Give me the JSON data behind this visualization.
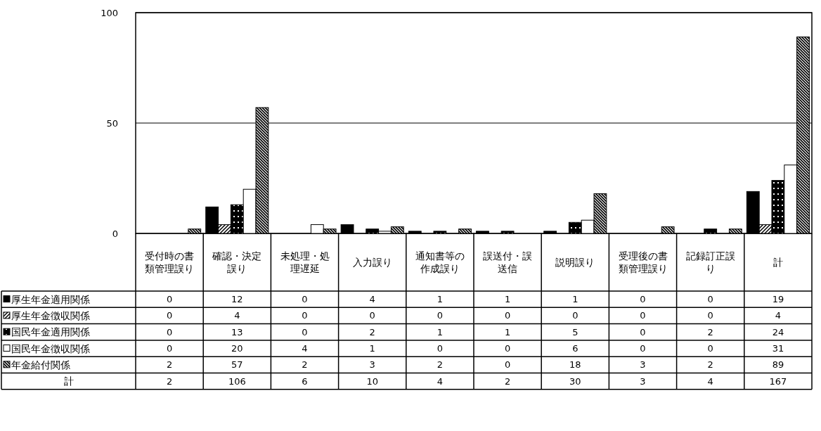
{
  "chart_data": {
    "type": "bar",
    "categories": [
      "受付時の書類管理誤り",
      "確認・決定誤り",
      "未処理・処理遅延",
      "入力誤り",
      "通知書等の作成誤り",
      "誤送付・誤送信",
      "説明誤り",
      "受理後の書類管理誤り",
      "記録訂正誤り",
      "計"
    ],
    "series": [
      {
        "name": "厚生年金適用関係",
        "color": "#000000",
        "values": [
          0,
          12,
          0,
          4,
          1,
          1,
          1,
          0,
          0,
          19
        ]
      },
      {
        "name": "厚生年金徴収関係",
        "color": "#000000",
        "values": [
          0,
          4,
          0,
          0,
          0,
          0,
          0,
          0,
          0,
          4
        ]
      },
      {
        "name": "国民年金適用関係",
        "color": "#000000",
        "values": [
          0,
          13,
          0,
          2,
          1,
          1,
          5,
          0,
          2,
          24
        ]
      },
      {
        "name": "国民年金徴収関係",
        "color": "#ffffff",
        "values": [
          0,
          20,
          4,
          1,
          0,
          0,
          6,
          0,
          0,
          31
        ]
      },
      {
        "name": "年金給付関係",
        "color": "#000000",
        "values": [
          2,
          57,
          2,
          3,
          2,
          0,
          18,
          3,
          2,
          89
        ]
      }
    ],
    "ylim": [
      0,
      100
    ],
    "yticks": [
      0,
      50,
      100
    ],
    "grid": "y",
    "legend": "left",
    "data_labels": true,
    "annotations": [
      "計",
      "2",
      "106",
      "6",
      "10",
      "4",
      "2",
      "30",
      "3",
      "4",
      "167"
    ]
  }
}
